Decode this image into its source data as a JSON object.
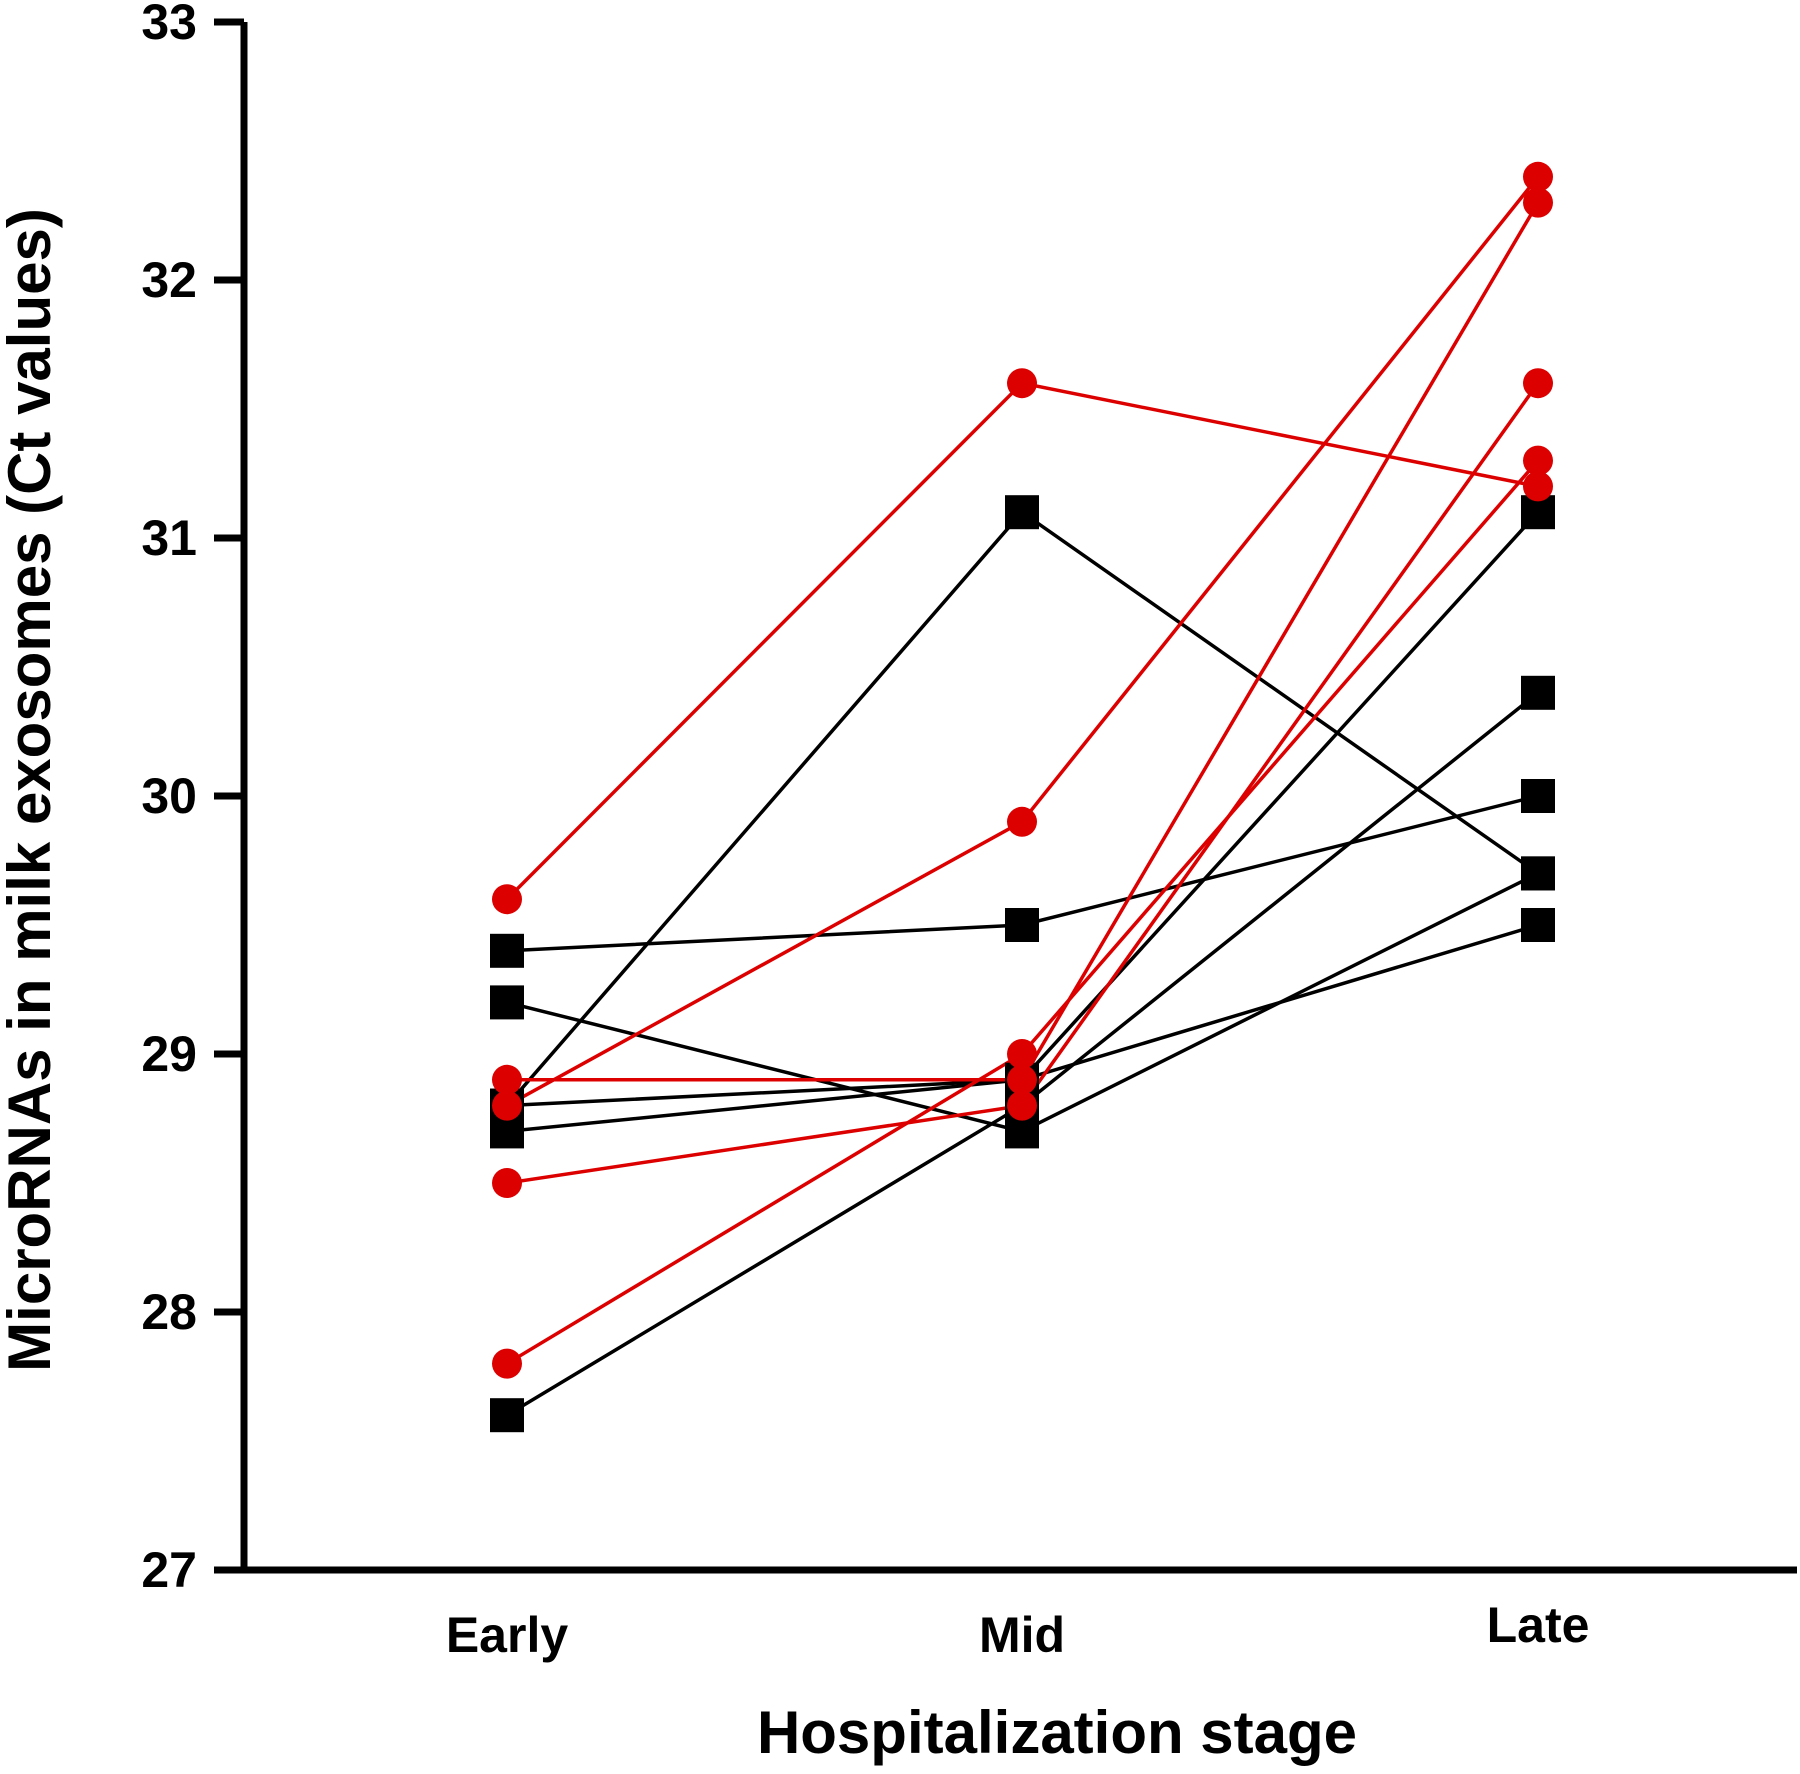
{
  "chart_data": {
    "type": "line",
    "title": "",
    "xlabel": "Hospitalization stage",
    "ylabel": "MicroRNAs in milk exosomes (Ct values)",
    "categories": [
      "Early",
      "Mid",
      "Late"
    ],
    "ylim": [
      27,
      33
    ],
    "yticks": [
      "27",
      "28",
      "29",
      "30",
      "31",
      "32",
      "33"
    ],
    "grid": false,
    "legend": "none",
    "colors": {
      "group_black": "#000000",
      "group_red": "#dd0000",
      "axis": "#000000"
    },
    "series": [
      {
        "group": "black",
        "marker": "square",
        "values": [
          29.4,
          29.5,
          30.0
        ]
      },
      {
        "group": "black",
        "marker": "square",
        "values": [
          29.2,
          28.7,
          29.7
        ]
      },
      {
        "group": "black",
        "marker": "square",
        "values": [
          28.8,
          31.1,
          29.7
        ]
      },
      {
        "group": "black",
        "marker": "square",
        "values": [
          28.7,
          28.9,
          29.5
        ]
      },
      {
        "group": "black",
        "marker": "square",
        "values": [
          28.8,
          28.9,
          31.1
        ]
      },
      {
        "group": "black",
        "marker": "square",
        "values": [
          27.6,
          28.8,
          30.4
        ]
      },
      {
        "group": "red",
        "marker": "circle",
        "values": [
          29.6,
          31.6,
          31.2
        ]
      },
      {
        "group": "red",
        "marker": "circle",
        "values": [
          28.8,
          29.9,
          32.4
        ]
      },
      {
        "group": "red",
        "marker": "circle",
        "values": [
          28.9,
          28.9,
          32.3
        ]
      },
      {
        "group": "red",
        "marker": "circle",
        "values": [
          28.5,
          28.8,
          31.6
        ]
      },
      {
        "group": "red",
        "marker": "circle",
        "values": [
          27.8,
          29.0,
          31.3
        ]
      }
    ]
  }
}
